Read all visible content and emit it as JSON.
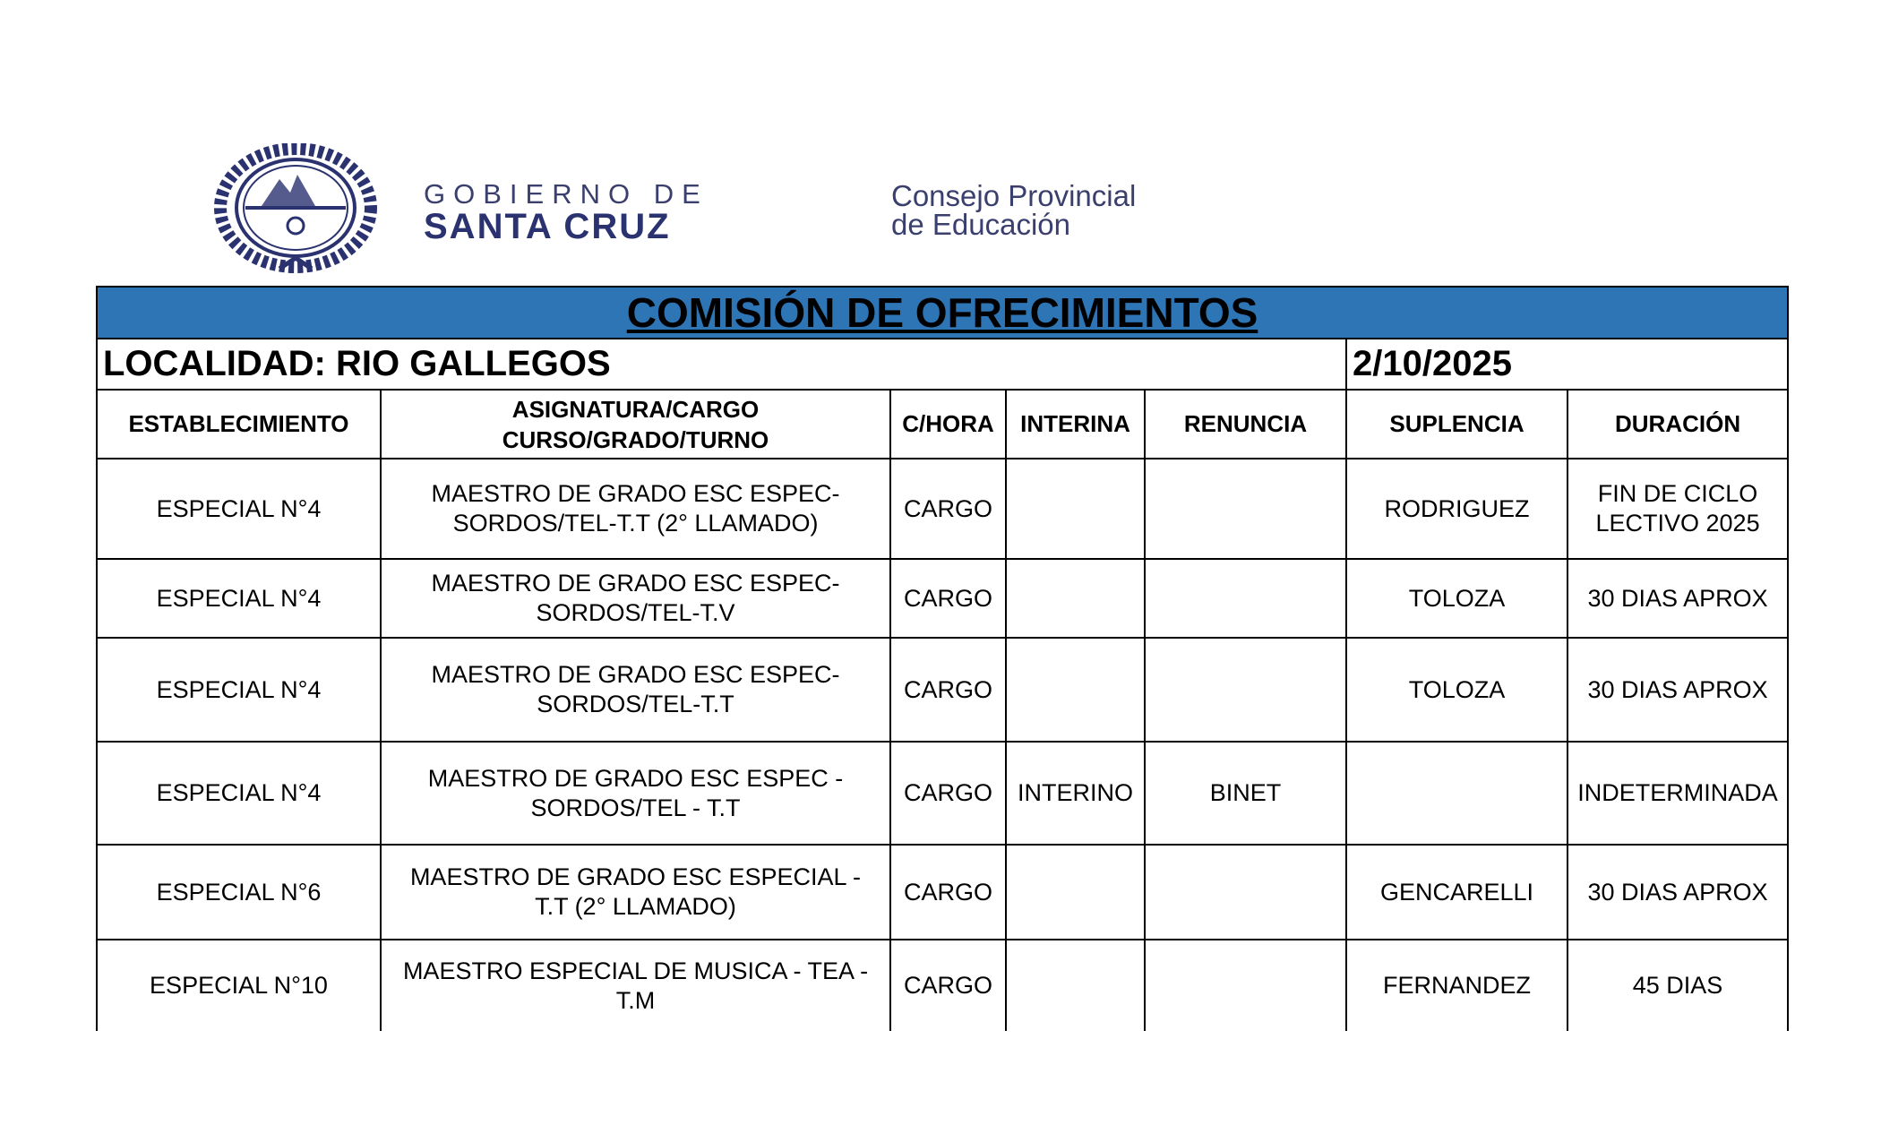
{
  "header": {
    "logo_text": {
      "gobierno_line1": "GOBIERNO DE",
      "gobierno_line2": "SANTA CRUZ",
      "consejo_line1": "Consejo Provincial",
      "consejo_line2": "de Educación"
    },
    "title": "COMISIÓN DE OFRECIMIENTOS",
    "localidad": "LOCALIDAD: RIO GALLEGOS",
    "date": "2/10/2025"
  },
  "colors": {
    "banner": "#2e75b6",
    "logo": "#2b3270"
  },
  "table": {
    "columns": [
      "ESTABLECIMIENTO",
      "ASIGNATURA/CARGO CURSO/GRADO/TURNO",
      "C/HORA",
      "INTERINA",
      "RENUNCIA",
      "SUPLENCIA",
      "DURACIÓN"
    ],
    "rows": [
      [
        "ESPECIAL N°4",
        "MAESTRO DE GRADO ESC ESPEC-SORDOS/TEL-T.T (2° LLAMADO)",
        "CARGO",
        "",
        "",
        "RODRIGUEZ",
        "FIN DE CICLO LECTIVO 2025"
      ],
      [
        "ESPECIAL N°4",
        "MAESTRO DE GRADO ESC ESPEC-SORDOS/TEL-T.V",
        "CARGO",
        "",
        "",
        "TOLOZA",
        "30 DIAS APROX"
      ],
      [
        "ESPECIAL N°4",
        "MAESTRO DE GRADO ESC ESPEC-SORDOS/TEL-T.T",
        "CARGO",
        "",
        "",
        "TOLOZA",
        "30 DIAS APROX"
      ],
      [
        "ESPECIAL N°4",
        "MAESTRO DE GRADO ESC ESPEC - SORDOS/TEL - T.T",
        "CARGO",
        "INTERINO",
        "BINET",
        "",
        "INDETERMINADA"
      ],
      [
        "ESPECIAL N°6",
        "MAESTRO DE GRADO ESC ESPECIAL - T.T (2° LLAMADO)",
        "CARGO",
        "",
        "",
        "GENCARELLI",
        "30 DIAS APROX"
      ],
      [
        "ESPECIAL N°10",
        "MAESTRO ESPECIAL DE MUSICA - TEA - T.M",
        "CARGO",
        "",
        "",
        "FERNANDEZ",
        "45 DIAS"
      ]
    ]
  }
}
